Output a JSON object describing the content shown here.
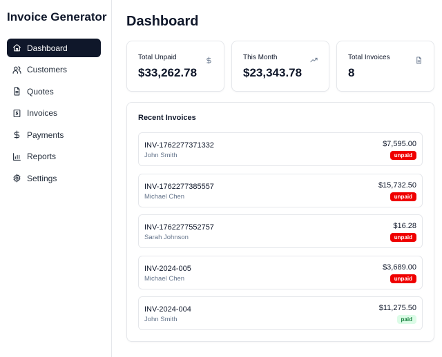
{
  "app": {
    "title": "Invoice Generator"
  },
  "sidebar": {
    "items": [
      {
        "label": "Dashboard",
        "icon": "home-icon",
        "active": true
      },
      {
        "label": "Customers",
        "icon": "users-icon",
        "active": false
      },
      {
        "label": "Quotes",
        "icon": "file-text-icon",
        "active": false
      },
      {
        "label": "Invoices",
        "icon": "receipt-icon",
        "active": false
      },
      {
        "label": "Payments",
        "icon": "dollar-icon",
        "active": false
      },
      {
        "label": "Reports",
        "icon": "bar-chart-icon",
        "active": false
      },
      {
        "label": "Settings",
        "icon": "gear-icon",
        "active": false
      }
    ]
  },
  "main": {
    "title": "Dashboard",
    "stats": [
      {
        "label": "Total Unpaid",
        "value": "$33,262.78",
        "icon": "dollar-icon"
      },
      {
        "label": "This Month",
        "value": "$23,343.78",
        "icon": "trending-up-icon"
      },
      {
        "label": "Total Invoices",
        "value": "8",
        "icon": "file-icon"
      }
    ],
    "recent": {
      "title": "Recent Invoices",
      "invoices": [
        {
          "number": "INV-1762277371332",
          "customer": "John Smith",
          "amount": "$7,595.00",
          "status": "unpaid"
        },
        {
          "number": "INV-1762277385557",
          "customer": "Michael Chen",
          "amount": "$15,732.50",
          "status": "unpaid"
        },
        {
          "number": "INV-1762277552757",
          "customer": "Sarah Johnson",
          "amount": "$16.28",
          "status": "unpaid"
        },
        {
          "number": "INV-2024-005",
          "customer": "Michael Chen",
          "amount": "$3,689.00",
          "status": "unpaid"
        },
        {
          "number": "INV-2024-004",
          "customer": "John Smith",
          "amount": "$11,275.50",
          "status": "paid"
        }
      ]
    }
  },
  "colors": {
    "primary": "#0f172a",
    "unpaid_badge": "#ef0000",
    "paid_badge_bg": "#dcfce7",
    "paid_badge_text": "#15803d",
    "muted_text": "#64748b",
    "border": "#e5e7eb"
  }
}
